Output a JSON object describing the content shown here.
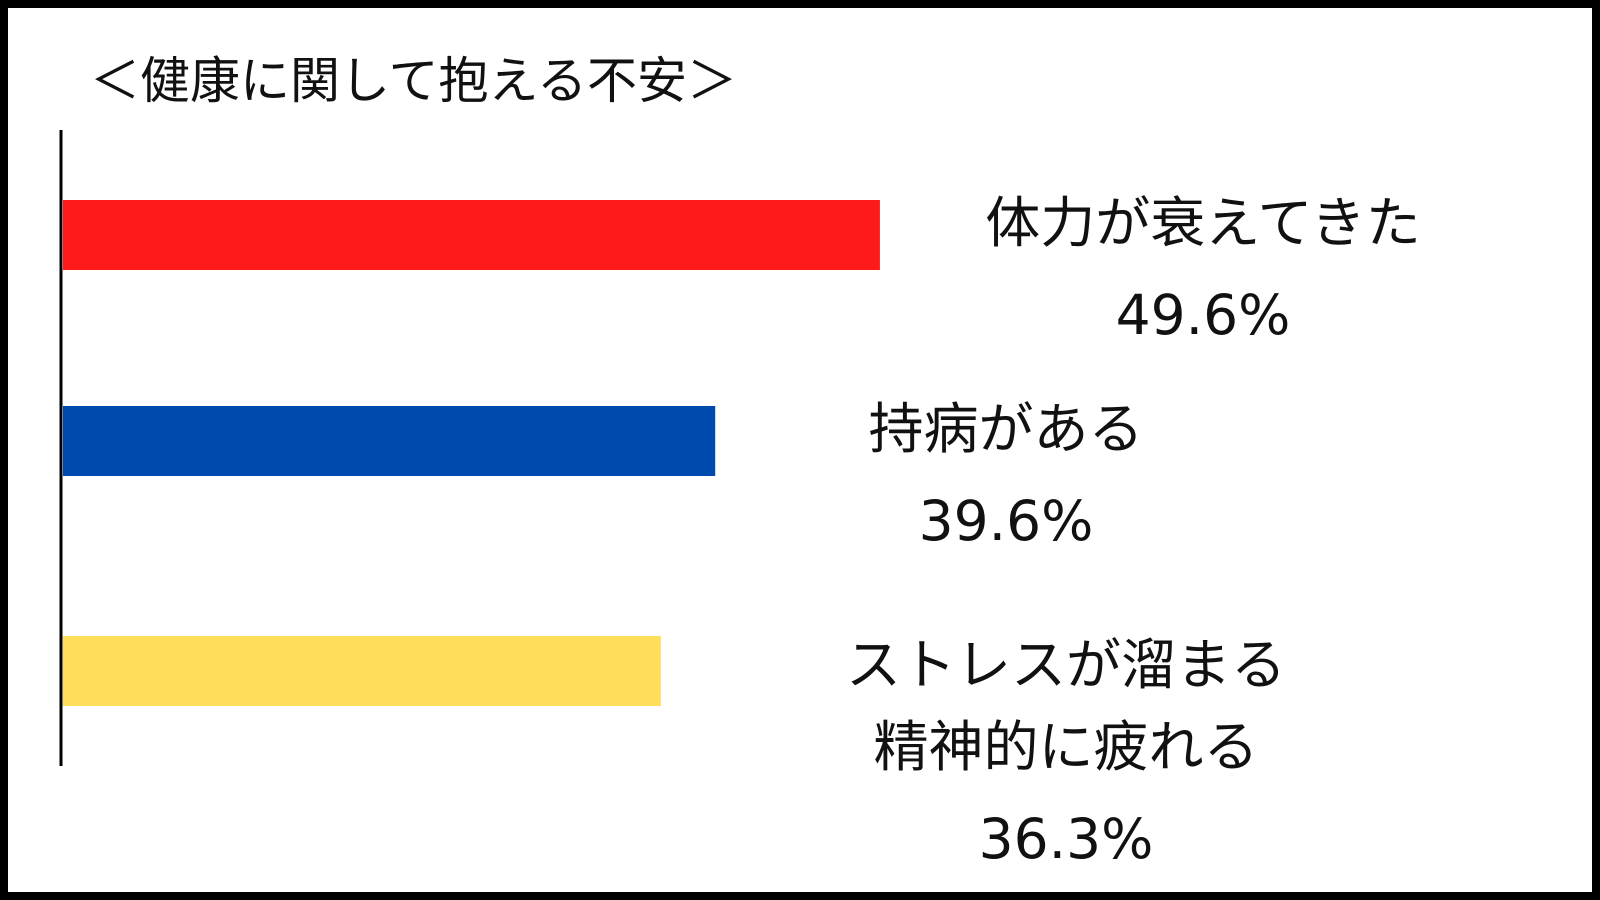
{
  "chart_data": {
    "type": "bar",
    "orientation": "horizontal",
    "title": "＜健康に関して抱える不安＞",
    "xlabel": "",
    "ylabel": "",
    "xlim": [
      0,
      100
    ],
    "grid": false,
    "legend": "none",
    "categories": [
      [
        "体力が衰えてきた"
      ],
      [
        "持病がある"
      ],
      [
        "ストレスが溜まる",
        "精神的に疲れる"
      ]
    ],
    "values": [
      49.6,
      39.6,
      36.3
    ],
    "value_labels": [
      "49.6%",
      "39.6%",
      "36.3%"
    ],
    "colors": [
      "#ff1a1a",
      "#004aad",
      "#ffde59"
    ]
  }
}
